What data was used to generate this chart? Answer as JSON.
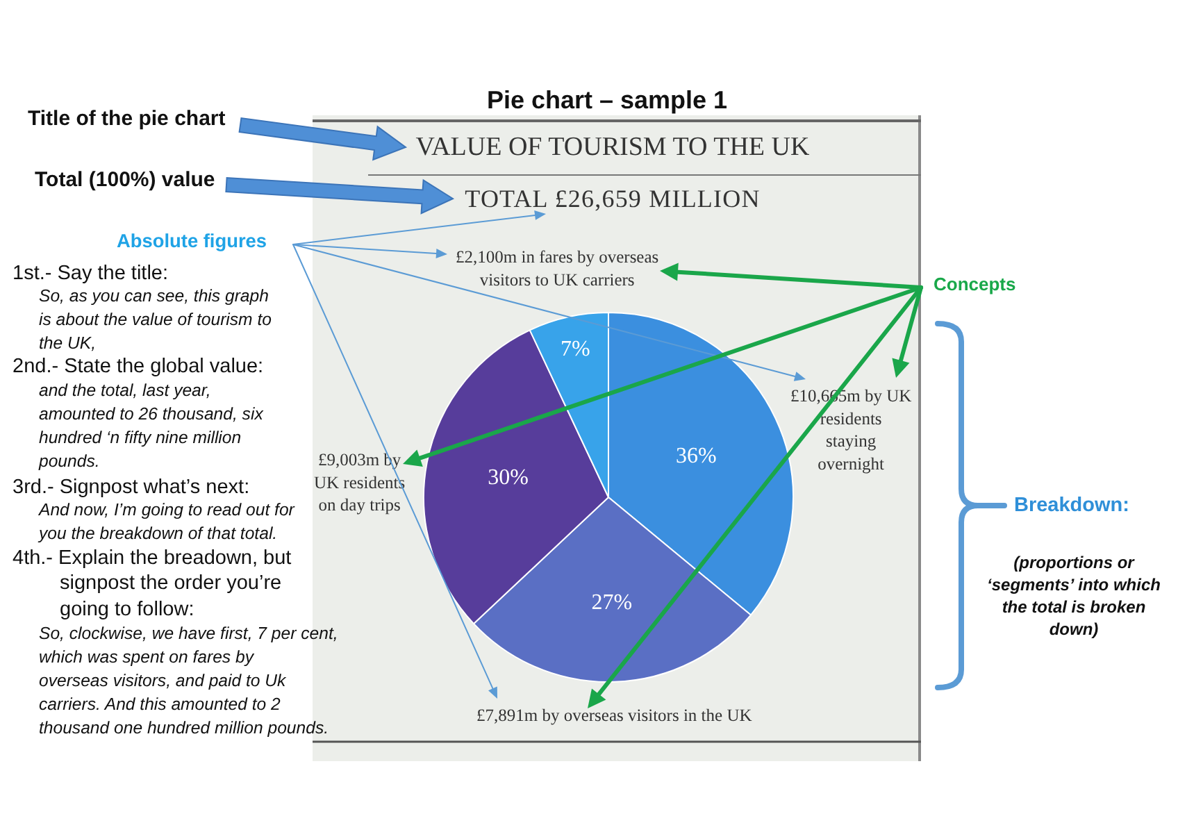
{
  "chart_data": {
    "type": "pie",
    "title": "VALUE OF TOURISM TO THE UK",
    "subtitle": "TOTAL £26,659 MILLION",
    "categories": [
      "£10,665m by UK\nresidents\nstaying\novernight",
      "£7,891m by overseas visitors in the UK",
      "£9,003m by\nUK residents\non day trips",
      "£2,100m in fares by overseas\nvisitors to UK carriers"
    ],
    "values": [
      36,
      27,
      30,
      7
    ],
    "colors": [
      "#3b8fdf",
      "#5a6fc4",
      "#573d9b",
      "#38a3ea"
    ],
    "value_labels": [
      "36%",
      "27%",
      "30%",
      "7%"
    ],
    "annotations": [
      "Pie chart – sample 1",
      "Title of the pie chart",
      "Total (100%) value",
      "Absolute figures",
      "1st.- Say the title:",
      "So, as you can see, this graph\nis about the value of tourism to\nthe UK,",
      "2nd.- State the global value:",
      "and the total, last year,\namounted to 26 thousand, six\nhundred ‘n fifty nine million\npounds.",
      "3rd.- Signpost what’s next:",
      "And now, I’m going to read out for\nyou the breakdown of that total.",
      "4th.- Explain the breadown, but",
      "signpost the order you’re\ngoing to follow:",
      "So, clockwise, we have first, 7 per cent,\nwhich was spent on fares by\noverseas visitors, and paid to Uk\ncarriers. And this amounted to 2\nthousand one hundred million pounds.",
      "Concepts",
      "Breakdown:",
      "(proportions or\n‘segments’ into which\nthe total is broken\ndown)"
    ]
  }
}
